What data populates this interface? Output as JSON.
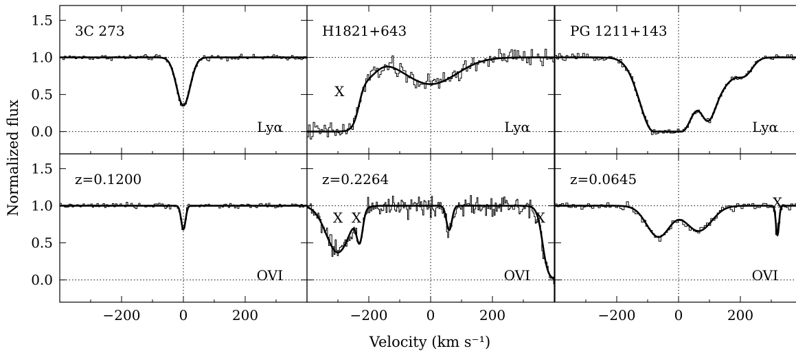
{
  "chart_data": {
    "type": "line",
    "xlabel": "Velocity (km s⁻¹)",
    "ylabel": "Normalized flux",
    "xlim": [
      -400,
      400
    ],
    "ylim": [
      -0.3,
      1.7
    ],
    "x_ticks": [
      -200,
      0,
      200
    ],
    "x_tick_labels": [
      "−200",
      "0",
      "200"
    ],
    "y_ticks": [
      0.0,
      0.5,
      1.0,
      1.5
    ],
    "y_tick_labels": [
      "0.0",
      "0.5",
      "1.0",
      "1.5"
    ],
    "reference_lines": {
      "x": [
        0
      ],
      "y": [
        0.0,
        1.0
      ]
    },
    "grid": false,
    "panels": [
      {
        "id": "3c273-lya",
        "row": 0,
        "col": 0,
        "object": "3C 273",
        "line": "Lyα",
        "fit_components": [
          {
            "center": 0,
            "depth": 0.65,
            "width": 22
          }
        ],
        "markers": []
      },
      {
        "id": "h1821-lya",
        "row": 0,
        "col": 1,
        "object": "H1821+643",
        "line": "Lyα",
        "fit_components": [
          {
            "type": "edge",
            "center": -230,
            "width": 10
          },
          {
            "center": 0,
            "depth": 0.36,
            "width": 85
          },
          {
            "center": -210,
            "depth": 0.25,
            "width": 35
          }
        ],
        "markers": [
          {
            "label": "X",
            "x": -295,
            "y": 0.55
          }
        ]
      },
      {
        "id": "pg1211-lya",
        "row": 0,
        "col": 2,
        "object": "PG 1211+143",
        "line": "Lyα",
        "fit_components": [
          {
            "center": -35,
            "depth": 1.0,
            "width": 32,
            "shape": "flat"
          },
          {
            "center": 95,
            "depth": 0.8,
            "width": 28
          },
          {
            "center": 145,
            "depth": 0.32,
            "width": 40
          },
          {
            "center": 215,
            "depth": 0.2,
            "width": 25
          }
        ],
        "markers": []
      },
      {
        "id": "3c273-ovi",
        "row": 1,
        "col": 0,
        "redshift": "z=0.1200",
        "line": "OVI",
        "fit_components": [
          {
            "center": 0,
            "depth": 0.32,
            "width": 7
          }
        ],
        "markers": []
      },
      {
        "id": "h1821-ovi",
        "row": 1,
        "col": 1,
        "redshift": "z=0.2264",
        "line": "OVI",
        "fit_components": [
          {
            "center": -300,
            "depth": 0.63,
            "width": 38
          },
          {
            "center": -230,
            "depth": 0.45,
            "width": 10
          },
          {
            "center": 60,
            "depth": 0.33,
            "width": 9
          },
          {
            "type": "drop",
            "center": 362,
            "width": 9
          }
        ],
        "markers": [
          {
            "label": "X",
            "x": -300,
            "y": 0.85
          },
          {
            "label": "X",
            "x": -240,
            "y": 0.85
          },
          {
            "label": "X",
            "x": 355,
            "y": 0.85
          }
        ]
      },
      {
        "id": "pg1211-ovi",
        "row": 1,
        "col": 2,
        "redshift": "z=0.0645",
        "line": "OVI",
        "fit_components": [
          {
            "center": -65,
            "depth": 0.42,
            "width": 38
          },
          {
            "center": 65,
            "depth": 0.34,
            "width": 42
          },
          {
            "center": 320,
            "depth": 0.4,
            "width": 5
          }
        ],
        "markers": [
          {
            "label": "X",
            "x": 320,
            "y": 1.05
          }
        ]
      }
    ]
  }
}
